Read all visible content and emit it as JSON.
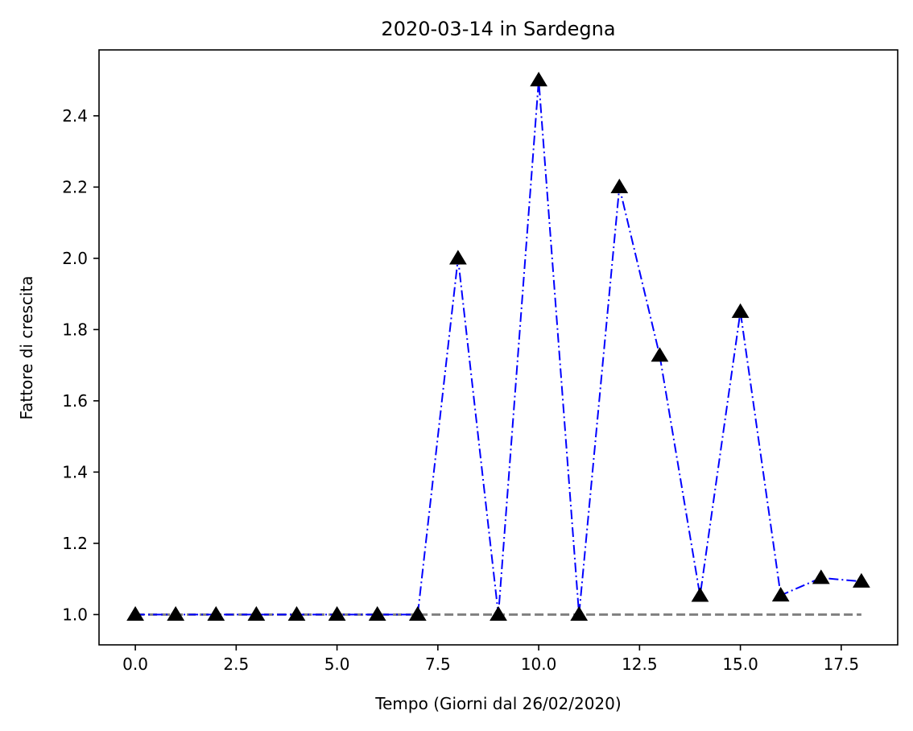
{
  "chart_data": {
    "type": "line",
    "title": "2020-03-14 in Sardegna",
    "xlabel": "Tempo (Giorni dal 26/02/2020)",
    "ylabel": "Fattore di crescita",
    "xlim": [
      -0.9,
      18.9
    ],
    "ylim": [
      0.915,
      2.585
    ],
    "xticks": [
      0,
      2.5,
      5,
      7.5,
      10,
      12.5,
      15,
      17.5
    ],
    "xtick_labels": [
      "0.0",
      "2.5",
      "5.0",
      "7.5",
      "10.0",
      "12.5",
      "15.0",
      "17.5"
    ],
    "yticks": [
      1.0,
      1.2,
      1.4,
      1.6,
      1.8,
      2.0,
      2.2,
      2.4
    ],
    "ytick_labels": [
      "1.0",
      "1.2",
      "1.4",
      "1.6",
      "1.8",
      "2.0",
      "2.2",
      "2.4"
    ],
    "grid": false,
    "legend": "none",
    "series": [
      {
        "x": [
          0,
          1,
          2,
          3,
          4,
          5,
          6,
          7,
          8,
          9,
          10,
          11,
          12,
          13,
          14,
          15,
          16,
          17,
          18
        ],
        "y": [
          1.0,
          1.0,
          1.0,
          1.0,
          1.0,
          1.0,
          1.0,
          1.0,
          2.0,
          1.0,
          2.5,
          1.0,
          2.2,
          1.727,
          1.053,
          1.85,
          1.054,
          1.103,
          1.093
        ],
        "color": "#0000ff",
        "linestyle": "dash-dot",
        "marker": "triangle",
        "marker_color": "#000000"
      }
    ],
    "reference_line": {
      "y": 1.0,
      "x": [
        0,
        18
      ],
      "color": "#808080",
      "linestyle": "dashed"
    }
  }
}
